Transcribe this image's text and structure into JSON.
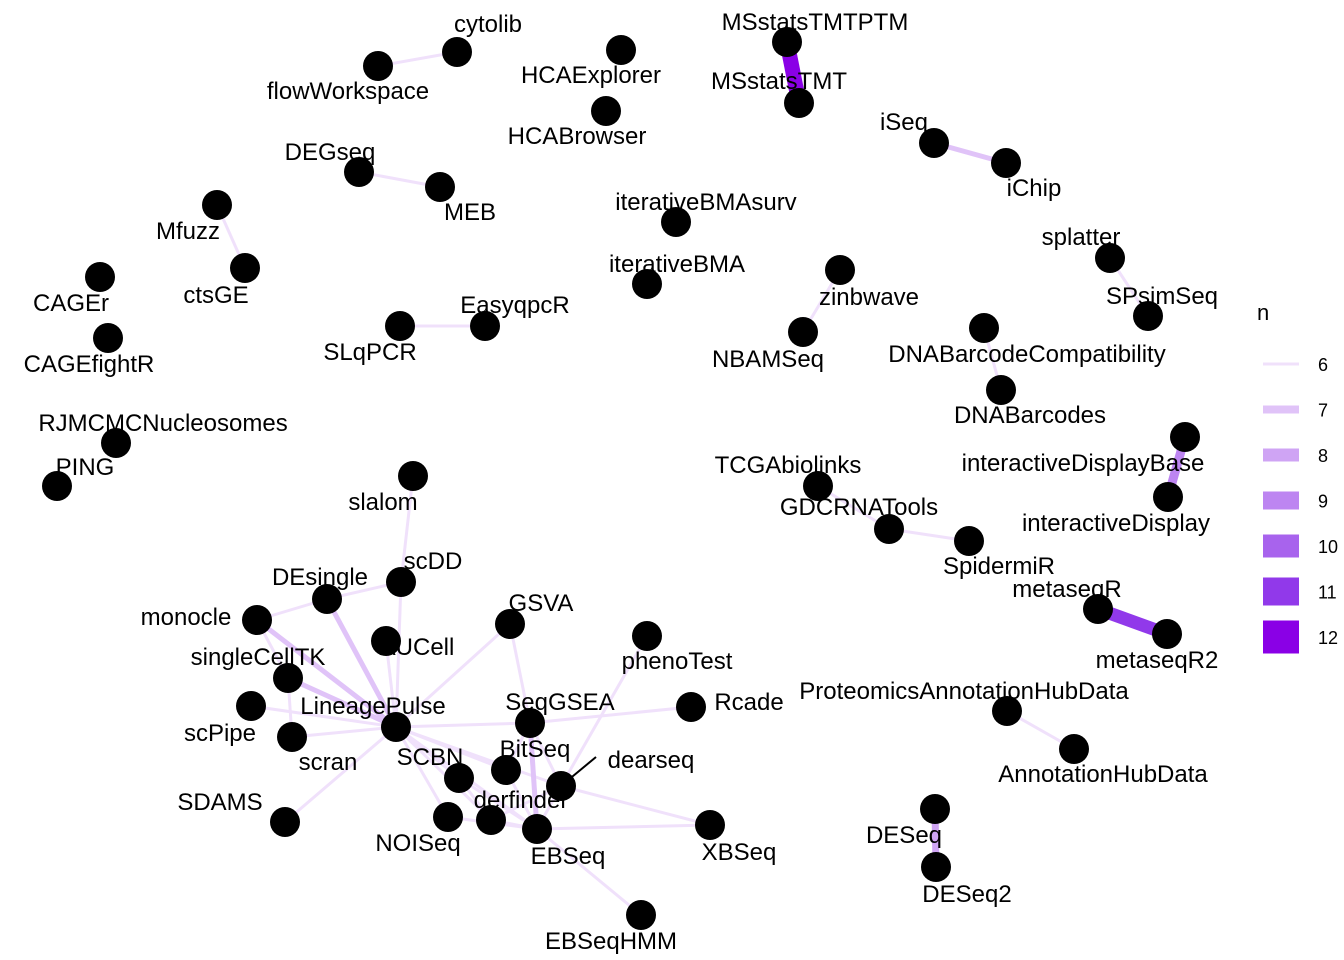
{
  "legend": {
    "title": "n",
    "items": [
      {
        "label": "6",
        "color": "#f0e1fb"
      },
      {
        "label": "7",
        "color": "#e0c3f8"
      },
      {
        "label": "8",
        "color": "#cfa4f4"
      },
      {
        "label": "9",
        "color": "#bd85f1"
      },
      {
        "label": "10",
        "color": "#a863ed"
      },
      {
        "label": "11",
        "color": "#9139ea"
      },
      {
        "label": "12",
        "color": "#8a00e6"
      }
    ]
  },
  "nodes": [
    {
      "id": "cytolib",
      "label": "cytolib"
    },
    {
      "id": "flowWorkspace",
      "label": "flowWorkspace"
    },
    {
      "id": "HCAExplorer",
      "label": "HCAExplorer"
    },
    {
      "id": "HCABrowser",
      "label": "HCABrowser"
    },
    {
      "id": "MSstatsTMTPTM",
      "label": "MSstatsTMTPTM"
    },
    {
      "id": "MSstatsTMT",
      "label": "MSstatsTMT"
    },
    {
      "id": "iSeq",
      "label": "iSeq"
    },
    {
      "id": "iChip",
      "label": "iChip"
    },
    {
      "id": "DEGseq",
      "label": "DEGseq"
    },
    {
      "id": "MEB",
      "label": "MEB"
    },
    {
      "id": "Mfuzz",
      "label": "Mfuzz"
    },
    {
      "id": "ctsGE",
      "label": "ctsGE"
    },
    {
      "id": "iterativeBMAsurv",
      "label": "iterativeBMAsurv"
    },
    {
      "id": "iterativeBMA",
      "label": "iterativeBMA"
    },
    {
      "id": "splatter",
      "label": "splatter"
    },
    {
      "id": "SPsimSeq",
      "label": "SPsimSeq"
    },
    {
      "id": "CAGEr",
      "label": "CAGEr"
    },
    {
      "id": "CAGEfightR",
      "label": "CAGEfightR"
    },
    {
      "id": "EasyqpcR",
      "label": "EasyqpcR"
    },
    {
      "id": "SLqPCR",
      "label": "SLqPCR"
    },
    {
      "id": "zinbwave",
      "label": "zinbwave"
    },
    {
      "id": "NBAMSeq",
      "label": "NBAMSeq"
    },
    {
      "id": "DNABarcodeCompatibility",
      "label": "DNABarcodeCompatibility"
    },
    {
      "id": "DNABarcodes",
      "label": "DNABarcodes"
    },
    {
      "id": "RJMCMCNucleosomes",
      "label": "RJMCMCNucleosomes"
    },
    {
      "id": "PING",
      "label": "PING"
    },
    {
      "id": "TCGAbiolinks",
      "label": "TCGAbiolinks"
    },
    {
      "id": "GDCRNATools",
      "label": "GDCRNATools"
    },
    {
      "id": "SpidermiR",
      "label": "SpidermiR"
    },
    {
      "id": "interactiveDisplayBase",
      "label": "interactiveDisplayBase"
    },
    {
      "id": "interactiveDisplay",
      "label": "interactiveDisplay"
    },
    {
      "id": "metaseqR",
      "label": "metaseqR"
    },
    {
      "id": "metaseqR2",
      "label": "metaseqR2"
    },
    {
      "id": "ProteomicsAnnotationHubData",
      "label": "ProteomicsAnnotationHubData"
    },
    {
      "id": "AnnotationHubData",
      "label": "AnnotationHubData"
    },
    {
      "id": "DESeq",
      "label": "DESeq"
    },
    {
      "id": "DESeq2",
      "label": "DESeq2"
    },
    {
      "id": "slalom",
      "label": "slalom"
    },
    {
      "id": "scDD",
      "label": "scDD"
    },
    {
      "id": "DEsingle",
      "label": "DEsingle"
    },
    {
      "id": "monocle",
      "label": "monocle"
    },
    {
      "id": "GSVA",
      "label": "GSVA"
    },
    {
      "id": "AUCell",
      "label": "AUCell"
    },
    {
      "id": "phenoTest",
      "label": "phenoTest"
    },
    {
      "id": "singleCellTK",
      "label": "singleCellTK"
    },
    {
      "id": "LineagePulse",
      "label": "LineagePulse"
    },
    {
      "id": "SeqGSEA",
      "label": "SeqGSEA"
    },
    {
      "id": "Rcade",
      "label": "Rcade"
    },
    {
      "id": "scPipe",
      "label": "scPipe"
    },
    {
      "id": "scran",
      "label": "scran"
    },
    {
      "id": "SCBN",
      "label": "SCBN"
    },
    {
      "id": "BitSeq",
      "label": "BitSeq"
    },
    {
      "id": "dearseq",
      "label": "dearseq"
    },
    {
      "id": "derfinder",
      "label": "derfinder"
    },
    {
      "id": "SDAMS",
      "label": "SDAMS"
    },
    {
      "id": "NOISeq",
      "label": "NOISeq"
    },
    {
      "id": "EBSeq",
      "label": "EBSeq"
    },
    {
      "id": "XBSeq",
      "label": "XBSeq"
    },
    {
      "id": "EBSeqHMM",
      "label": "EBSeqHMM"
    }
  ],
  "edges": [
    {
      "from": "cytolib",
      "to": "flowWorkspace",
      "n": 6
    },
    {
      "from": "MSstatsTMTPTM",
      "to": "MSstatsTMT",
      "n": 12
    },
    {
      "from": "iSeq",
      "to": "iChip",
      "n": 7
    },
    {
      "from": "DEGseq",
      "to": "MEB",
      "n": 6
    },
    {
      "from": "Mfuzz",
      "to": "ctsGE",
      "n": 6
    },
    {
      "from": "splatter",
      "to": "SPsimSeq",
      "n": 6
    },
    {
      "from": "EasyqpcR",
      "to": "SLqPCR",
      "n": 6
    },
    {
      "from": "zinbwave",
      "to": "NBAMSeq",
      "n": 6
    },
    {
      "from": "DNABarcodeCompatibility",
      "to": "DNABarcodes",
      "n": 6
    },
    {
      "from": "TCGAbiolinks",
      "to": "GDCRNATools",
      "n": 6
    },
    {
      "from": "GDCRNATools",
      "to": "SpidermiR",
      "n": 6
    },
    {
      "from": "interactiveDisplayBase",
      "to": "interactiveDisplay",
      "n": 9
    },
    {
      "from": "metaseqR",
      "to": "metaseqR2",
      "n": 11
    },
    {
      "from": "ProteomicsAnnotationHubData",
      "to": "AnnotationHubData",
      "n": 6
    },
    {
      "from": "DESeq",
      "to": "DESeq2",
      "n": 8
    },
    {
      "from": "slalom",
      "to": "scDD",
      "n": 6
    },
    {
      "from": "scDD",
      "to": "LineagePulse",
      "n": 6
    },
    {
      "from": "scDD",
      "to": "DEsingle",
      "n": 6
    },
    {
      "from": "DEsingle",
      "to": "monocle",
      "n": 6
    },
    {
      "from": "DEsingle",
      "to": "LineagePulse",
      "n": 7
    },
    {
      "from": "monocle",
      "to": "LineagePulse",
      "n": 7
    },
    {
      "from": "monocle",
      "to": "singleCellTK",
      "n": 6
    },
    {
      "from": "GSVA",
      "to": "LineagePulse",
      "n": 6
    },
    {
      "from": "GSVA",
      "to": "SeqGSEA",
      "n": 6
    },
    {
      "from": "AUCell",
      "to": "LineagePulse",
      "n": 6
    },
    {
      "from": "singleCellTK",
      "to": "LineagePulse",
      "n": 7
    },
    {
      "from": "singleCellTK",
      "to": "scran",
      "n": 6
    },
    {
      "from": "scPipe",
      "to": "LineagePulse",
      "n": 6
    },
    {
      "from": "scran",
      "to": "LineagePulse",
      "n": 6
    },
    {
      "from": "SDAMS",
      "to": "LineagePulse",
      "n": 6
    },
    {
      "from": "LineagePulse",
      "to": "SCBN",
      "n": 6
    },
    {
      "from": "LineagePulse",
      "to": "dearseq",
      "n": 6
    },
    {
      "from": "LineagePulse",
      "to": "SeqGSEA",
      "n": 6
    },
    {
      "from": "LineagePulse",
      "to": "NOISeq",
      "n": 6
    },
    {
      "from": "LineagePulse",
      "to": "derfinder",
      "n": 6
    },
    {
      "from": "LineagePulse",
      "to": "EBSeq",
      "n": 6
    },
    {
      "from": "LineagePulse",
      "to": "BitSeq",
      "n": 6
    },
    {
      "from": "SeqGSEA",
      "to": "Rcade",
      "n": 6
    },
    {
      "from": "SeqGSEA",
      "to": "dearseq",
      "n": 6
    },
    {
      "from": "SeqGSEA",
      "to": "EBSeq",
      "n": 7
    },
    {
      "from": "SeqGSEA",
      "to": "BitSeq",
      "n": 6
    },
    {
      "from": "phenoTest",
      "to": "dearseq",
      "n": 6
    },
    {
      "from": "SCBN",
      "to": "derfinder",
      "n": 6
    },
    {
      "from": "SCBN",
      "to": "EBSeq",
      "n": 6
    },
    {
      "from": "BitSeq",
      "to": "EBSeq",
      "n": 6
    },
    {
      "from": "dearseq",
      "to": "XBSeq",
      "n": 6
    },
    {
      "from": "dearseq",
      "to": "EBSeq",
      "n": 6
    },
    {
      "from": "derfinder",
      "to": "EBSeq",
      "n": 6
    },
    {
      "from": "NOISeq",
      "to": "EBSeq",
      "n": 6
    },
    {
      "from": "EBSeq",
      "to": "EBSeqHMM",
      "n": 6
    },
    {
      "from": "EBSeq",
      "to": "XBSeq",
      "n": 6
    },
    {
      "from": "derfinder",
      "to": "dearseq",
      "n": 6
    }
  ]
}
